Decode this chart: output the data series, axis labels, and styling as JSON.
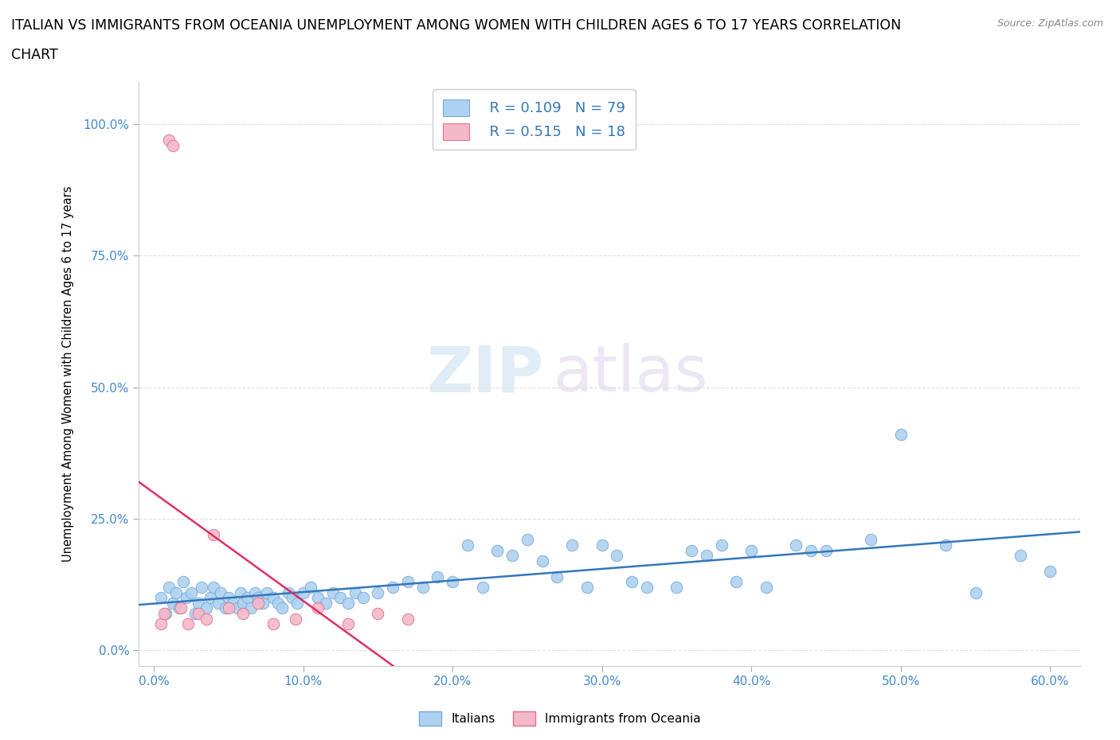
{
  "title_line1": "ITALIAN VS IMMIGRANTS FROM OCEANIA UNEMPLOYMENT AMONG WOMEN WITH CHILDREN AGES 6 TO 17 YEARS CORRELATION",
  "title_line2": "CHART",
  "source": "Source: ZipAtlas.com",
  "ylabel": "Unemployment Among Women with Children Ages 6 to 17 years",
  "x_tick_labels": [
    "0.0%",
    "10.0%",
    "20.0%",
    "30.0%",
    "40.0%",
    "50.0%",
    "60.0%"
  ],
  "x_tick_vals": [
    0.0,
    10.0,
    20.0,
    30.0,
    40.0,
    50.0,
    60.0
  ],
  "y_tick_labels": [
    "0.0%",
    "25.0%",
    "50.0%",
    "75.0%",
    "100.0%"
  ],
  "y_tick_vals": [
    0.0,
    25.0,
    50.0,
    75.0,
    100.0
  ],
  "xlim": [
    -1.0,
    62.0
  ],
  "ylim": [
    -3.0,
    108.0
  ],
  "italian_color": "#add1f0",
  "oceania_color": "#f5b8c8",
  "italian_edge": "#7aaad8",
  "oceania_edge": "#e07090",
  "trend_italian_color": "#3377bb",
  "trend_oceania_color": "#e03060",
  "legend_R_italian": "R = 0.109",
  "legend_N_italian": "N = 79",
  "legend_R_oceania": "R = 0.515",
  "legend_N_oceania": "N = 18",
  "watermark_zip": "ZIP",
  "watermark_atlas": "atlas",
  "background_color": "#ffffff",
  "grid_color": "#e0e0e0",
  "title_fontsize": 12.5,
  "axis_label_fontsize": 10.5,
  "tick_fontsize": 11,
  "legend_fontsize": 13,
  "italian_x": [
    0.5,
    0.8,
    1.0,
    1.3,
    1.5,
    1.7,
    2.0,
    2.2,
    2.5,
    2.8,
    3.0,
    3.2,
    3.5,
    3.8,
    4.0,
    4.3,
    4.5,
    4.8,
    5.0,
    5.3,
    5.6,
    5.8,
    6.0,
    6.3,
    6.5,
    6.8,
    7.0,
    7.3,
    7.6,
    8.0,
    8.3,
    8.6,
    9.0,
    9.3,
    9.6,
    10.0,
    10.5,
    11.0,
    11.5,
    12.0,
    12.5,
    13.0,
    13.5,
    14.0,
    15.0,
    16.0,
    17.0,
    18.0,
    19.0,
    20.0,
    21.0,
    22.0,
    23.0,
    24.0,
    25.0,
    26.0,
    27.0,
    28.0,
    29.0,
    30.0,
    31.0,
    32.0,
    33.0,
    35.0,
    36.0,
    37.0,
    38.0,
    39.0,
    40.0,
    41.0,
    43.0,
    44.0,
    45.0,
    48.0,
    50.0,
    53.0,
    55.0,
    58.0,
    60.0
  ],
  "italian_y": [
    10.0,
    7.0,
    12.0,
    9.0,
    11.0,
    8.0,
    13.0,
    10.0,
    11.0,
    7.0,
    9.0,
    12.0,
    8.0,
    10.0,
    12.0,
    9.0,
    11.0,
    8.0,
    10.0,
    9.0,
    8.0,
    11.0,
    9.0,
    10.0,
    8.0,
    11.0,
    10.0,
    9.0,
    11.0,
    10.0,
    9.0,
    8.0,
    11.0,
    10.0,
    9.0,
    11.0,
    12.0,
    10.0,
    9.0,
    11.0,
    10.0,
    9.0,
    11.0,
    10.0,
    11.0,
    12.0,
    13.0,
    12.0,
    14.0,
    13.0,
    20.0,
    12.0,
    19.0,
    18.0,
    21.0,
    17.0,
    14.0,
    20.0,
    12.0,
    20.0,
    18.0,
    13.0,
    12.0,
    12.0,
    19.0,
    18.0,
    20.0,
    13.0,
    19.0,
    12.0,
    20.0,
    19.0,
    19.0,
    21.0,
    41.0,
    20.0,
    11.0,
    18.0,
    15.0
  ],
  "oceania_x": [
    0.5,
    0.7,
    1.0,
    1.3,
    1.8,
    2.3,
    3.0,
    3.5,
    4.0,
    5.0,
    6.0,
    7.0,
    8.0,
    9.5,
    11.0,
    13.0,
    15.0,
    17.0
  ],
  "oceania_y": [
    5.0,
    7.0,
    97.0,
    96.0,
    8.0,
    5.0,
    7.0,
    6.0,
    22.0,
    8.0,
    7.0,
    9.0,
    5.0,
    6.0,
    8.0,
    5.0,
    7.0,
    6.0
  ]
}
